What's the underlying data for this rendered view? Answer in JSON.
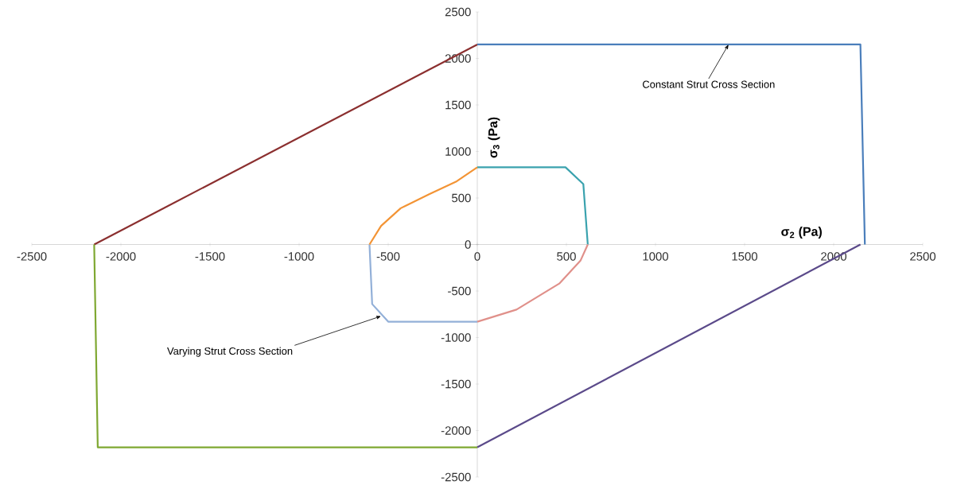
{
  "chart_data": {
    "type": "line",
    "xlabel": "σ$_{2}$ (Pa)",
    "ylabel": "σ$_{3}$ (Pa)",
    "xlim": [
      -2500,
      2500
    ],
    "ylim": [
      -2500,
      2500
    ],
    "xticks": [
      -2500,
      -2000,
      -1500,
      -1000,
      -500,
      0,
      500,
      1000,
      1500,
      2000,
      2500
    ],
    "yticks": [
      -2500,
      -2000,
      -1500,
      -1000,
      -500,
      0,
      500,
      1000,
      1500,
      2000,
      2500
    ],
    "grid": false,
    "marker": "none",
    "line_style": "solid",
    "series": [
      {
        "color": "#8b2f2f",
        "x": [
          -2150,
          0
        ],
        "values": [
          0,
          2150
        ]
      },
      {
        "color": "#4a7ebb",
        "x": [
          0,
          2150,
          2175
        ],
        "values": [
          2150,
          2150,
          0
        ]
      },
      {
        "color": "#5b4a8a",
        "x": [
          2150,
          0
        ],
        "values": [
          0,
          -2180
        ]
      },
      {
        "color": "#7fa832",
        "x": [
          0,
          -2130,
          -2150
        ],
        "values": [
          -2180,
          -2180,
          0
        ]
      },
      {
        "color": "#3aa2ae",
        "x": [
          0,
          495,
          595,
          620
        ],
        "values": [
          830,
          830,
          650,
          0
        ]
      },
      {
        "color": "#e0908a",
        "x": [
          620,
          580,
          460,
          220,
          0
        ],
        "values": [
          0,
          -170,
          -420,
          -700,
          -830
        ]
      },
      {
        "color": "#93b0d8",
        "x": [
          0,
          -500,
          -590,
          -605
        ],
        "values": [
          -830,
          -830,
          -640,
          0
        ]
      },
      {
        "color": "#f39435",
        "x": [
          -605,
          -540,
          -430,
          -270,
          -115,
          0
        ],
        "values": [
          0,
          200,
          390,
          540,
          680,
          830
        ]
      }
    ],
    "annotations": [
      {
        "text": "Constant Strut Cross Section",
        "x": 1410,
        "y": 2150
      },
      {
        "text": "Varying Strut Cross Section",
        "x": -540,
        "y": -770
      }
    ]
  }
}
